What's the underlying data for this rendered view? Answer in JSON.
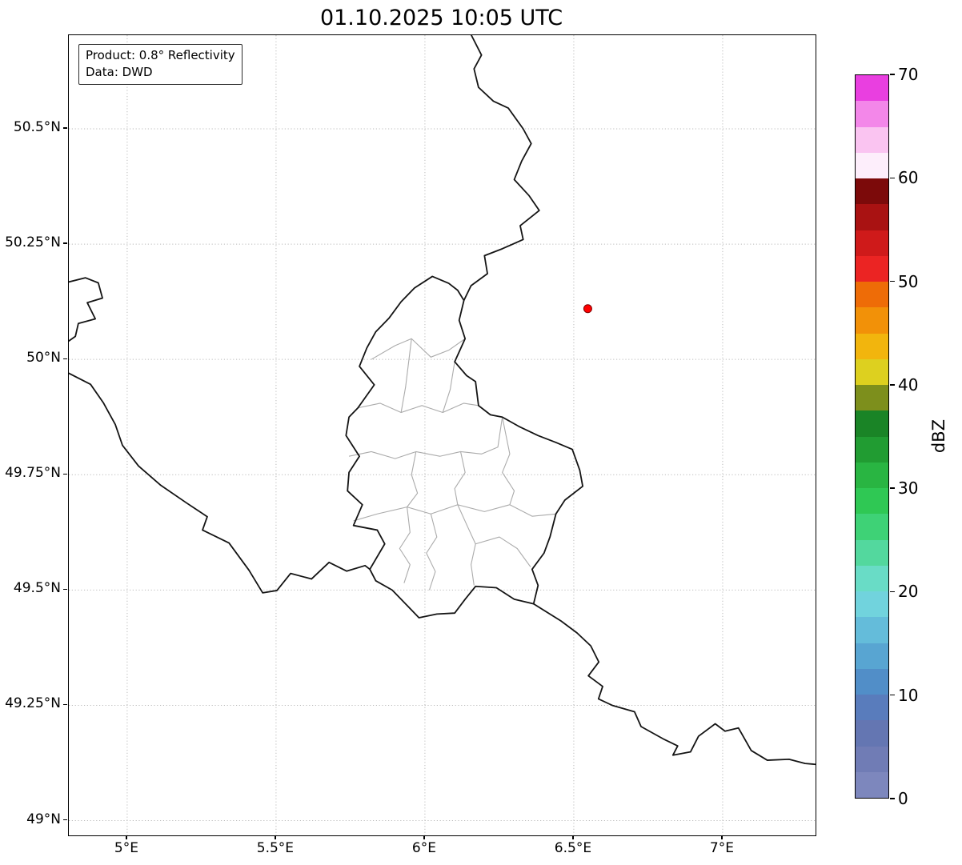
{
  "title": "01.10.2025 10:05 UTC",
  "annotation": {
    "product": "Product: 0.8° Reflectivity",
    "source": "Data: DWD"
  },
  "map": {
    "extent": {
      "lon_min": 4.804,
      "lon_max": 7.312,
      "lat_min": 48.968,
      "lat_max": 50.703
    },
    "grid_color": "#bbbbbb",
    "national_border_color": "#141414",
    "admin_border_color": "#ababab",
    "x_ticks": [
      {
        "v": 5.0,
        "label": "5°E"
      },
      {
        "v": 5.5,
        "label": "5.5°E"
      },
      {
        "v": 6.0,
        "label": "6°E"
      },
      {
        "v": 6.5,
        "label": "6.5°E"
      },
      {
        "v": 7.0,
        "label": "7°E"
      }
    ],
    "y_ticks": [
      {
        "v": 50.5,
        "label": "50.5°N"
      },
      {
        "v": 50.25,
        "label": "50.25°N"
      },
      {
        "v": 50.0,
        "label": "50°N"
      },
      {
        "v": 49.75,
        "label": "49.75°N"
      },
      {
        "v": 49.5,
        "label": "49.5°N"
      },
      {
        "v": 49.25,
        "label": "49.25°N"
      },
      {
        "v": 49.0,
        "label": "49°N"
      }
    ],
    "radar_marker": {
      "lon": 6.547,
      "lat": 50.11,
      "fill": "#ff0000",
      "edge": "#7f0000"
    },
    "borders_national": [
      [
        [
          6.156,
          50.703
        ],
        [
          6.19,
          50.66
        ],
        [
          6.165,
          50.63
        ],
        [
          6.18,
          50.59
        ],
        [
          6.23,
          50.56
        ],
        [
          6.28,
          50.545
        ],
        [
          6.33,
          50.5
        ],
        [
          6.357,
          50.468
        ],
        [
          6.325,
          50.43
        ],
        [
          6.3,
          50.39
        ],
        [
          6.35,
          50.355
        ],
        [
          6.384,
          50.323
        ],
        [
          6.32,
          50.29
        ],
        [
          6.33,
          50.26
        ],
        [
          6.26,
          50.24
        ],
        [
          6.2,
          50.225
        ],
        [
          6.21,
          50.186
        ],
        [
          6.155,
          50.16
        ],
        [
          6.131,
          50.128
        ]
      ],
      [
        [
          6.131,
          50.128
        ],
        [
          6.115,
          50.085
        ],
        [
          6.135,
          50.045
        ],
        [
          6.1,
          49.995
        ],
        [
          6.14,
          49.965
        ],
        [
          6.17,
          49.952
        ],
        [
          6.18,
          49.9
        ],
        [
          6.22,
          49.88
        ],
        [
          6.26,
          49.875
        ],
        [
          6.315,
          49.855
        ],
        [
          6.38,
          49.835
        ],
        [
          6.44,
          49.82
        ],
        [
          6.495,
          49.805
        ],
        [
          6.52,
          49.76
        ],
        [
          6.53,
          49.725
        ],
        [
          6.47,
          49.695
        ],
        [
          6.44,
          49.665
        ],
        [
          6.42,
          49.615
        ],
        [
          6.4,
          49.58
        ],
        [
          6.36,
          49.545
        ],
        [
          6.38,
          49.51
        ],
        [
          6.365,
          49.47
        ],
        [
          6.3,
          49.48
        ],
        [
          6.24,
          49.505
        ],
        [
          6.17,
          49.508
        ],
        [
          6.135,
          49.48
        ],
        [
          6.1,
          49.45
        ],
        [
          6.04,
          49.448
        ],
        [
          5.98,
          49.44
        ],
        [
          5.92,
          49.48
        ],
        [
          5.89,
          49.5
        ],
        [
          5.835,
          49.52
        ],
        [
          5.815,
          49.545
        ],
        [
          5.865,
          49.6
        ],
        [
          5.84,
          49.63
        ],
        [
          5.76,
          49.64
        ],
        [
          5.79,
          49.685
        ],
        [
          5.74,
          49.715
        ],
        [
          5.745,
          49.755
        ],
        [
          5.78,
          49.79
        ],
        [
          5.735,
          49.835
        ],
        [
          5.745,
          49.875
        ],
        [
          5.775,
          49.895
        ],
        [
          5.83,
          49.945
        ],
        [
          5.78,
          49.985
        ],
        [
          5.805,
          50.025
        ],
        [
          5.835,
          50.06
        ],
        [
          5.88,
          50.09
        ],
        [
          5.92,
          50.125
        ],
        [
          5.965,
          50.155
        ],
        [
          6.025,
          50.18
        ],
        [
          6.08,
          50.165
        ],
        [
          6.11,
          50.15
        ],
        [
          6.131,
          50.128
        ]
      ],
      [
        [
          4.804,
          50.168
        ],
        [
          4.86,
          50.177
        ],
        [
          4.903,
          50.166
        ],
        [
          4.917,
          50.133
        ],
        [
          4.866,
          50.123
        ],
        [
          4.893,
          50.088
        ],
        [
          4.836,
          50.078
        ],
        [
          4.826,
          50.05
        ],
        [
          4.804,
          50.04
        ]
      ],
      [
        [
          4.804,
          49.97
        ],
        [
          4.877,
          49.946
        ],
        [
          4.92,
          49.906
        ],
        [
          4.96,
          49.859
        ],
        [
          4.984,
          49.814
        ],
        [
          5.038,
          49.769
        ],
        [
          5.113,
          49.727
        ],
        [
          5.199,
          49.689
        ],
        [
          5.269,
          49.659
        ],
        [
          5.253,
          49.63
        ],
        [
          5.342,
          49.602
        ],
        [
          5.409,
          49.543
        ],
        [
          5.455,
          49.494
        ],
        [
          5.503,
          49.499
        ],
        [
          5.549,
          49.536
        ],
        [
          5.619,
          49.524
        ],
        [
          5.678,
          49.56
        ],
        [
          5.737,
          49.541
        ],
        [
          5.799,
          49.553
        ],
        [
          5.815,
          49.545
        ]
      ],
      [
        [
          6.365,
          49.47
        ],
        [
          6.457,
          49.433
        ],
        [
          6.511,
          49.407
        ],
        [
          6.557,
          49.379
        ],
        [
          6.584,
          49.344
        ],
        [
          6.549,
          49.314
        ],
        [
          6.597,
          49.291
        ],
        [
          6.583,
          49.264
        ],
        [
          6.629,
          49.25
        ],
        [
          6.704,
          49.236
        ],
        [
          6.726,
          49.204
        ],
        [
          6.804,
          49.176
        ],
        [
          6.849,
          49.162
        ],
        [
          6.833,
          49.142
        ],
        [
          6.892,
          49.149
        ],
        [
          6.919,
          49.183
        ],
        [
          6.975,
          49.21
        ],
        [
          7.008,
          49.194
        ],
        [
          7.053,
          49.201
        ],
        [
          7.096,
          49.152
        ],
        [
          7.15,
          49.131
        ],
        [
          7.223,
          49.133
        ],
        [
          7.277,
          49.124
        ],
        [
          7.312,
          49.122
        ]
      ]
    ],
    "borders_admin": [
      [
        [
          5.82,
          50.0
        ],
        [
          5.9,
          50.03
        ],
        [
          5.955,
          50.045
        ],
        [
          6.02,
          50.005
        ],
        [
          6.08,
          50.02
        ],
        [
          6.135,
          50.045
        ]
      ],
      [
        [
          5.775,
          49.895
        ],
        [
          5.85,
          49.905
        ],
        [
          5.92,
          49.885
        ],
        [
          5.99,
          49.9
        ],
        [
          6.06,
          49.885
        ],
        [
          6.13,
          49.905
        ],
        [
          6.18,
          49.9
        ]
      ],
      [
        [
          5.92,
          49.885
        ],
        [
          5.935,
          49.94
        ],
        [
          5.955,
          50.045
        ]
      ],
      [
        [
          6.06,
          49.885
        ],
        [
          6.085,
          49.935
        ],
        [
          6.1,
          49.995
        ]
      ],
      [
        [
          5.745,
          49.79
        ],
        [
          5.82,
          49.8
        ],
        [
          5.9,
          49.785
        ],
        [
          5.97,
          49.8
        ],
        [
          6.05,
          49.79
        ],
        [
          6.12,
          49.8
        ],
        [
          6.19,
          49.795
        ],
        [
          6.245,
          49.81
        ],
        [
          6.26,
          49.875
        ]
      ],
      [
        [
          5.97,
          49.8
        ],
        [
          5.955,
          49.75
        ],
        [
          5.975,
          49.71
        ],
        [
          5.94,
          49.68
        ]
      ],
      [
        [
          6.12,
          49.8
        ],
        [
          6.135,
          49.755
        ],
        [
          6.1,
          49.72
        ],
        [
          6.11,
          49.685
        ]
      ],
      [
        [
          5.76,
          49.65
        ],
        [
          5.84,
          49.665
        ],
        [
          5.94,
          49.68
        ],
        [
          6.02,
          49.665
        ],
        [
          6.11,
          49.685
        ],
        [
          6.2,
          49.67
        ],
        [
          6.285,
          49.685
        ],
        [
          6.36,
          49.66
        ],
        [
          6.44,
          49.665
        ]
      ],
      [
        [
          5.94,
          49.68
        ],
        [
          5.95,
          49.625
        ],
        [
          5.915,
          49.59
        ],
        [
          5.95,
          49.555
        ],
        [
          5.93,
          49.515
        ]
      ],
      [
        [
          6.02,
          49.665
        ],
        [
          6.04,
          49.615
        ],
        [
          6.005,
          49.58
        ],
        [
          6.035,
          49.54
        ],
        [
          6.015,
          49.5
        ]
      ],
      [
        [
          6.11,
          49.685
        ],
        [
          6.145,
          49.635
        ],
        [
          6.17,
          49.6
        ],
        [
          6.155,
          49.555
        ],
        [
          6.165,
          49.51
        ]
      ],
      [
        [
          6.17,
          49.6
        ],
        [
          6.25,
          49.615
        ],
        [
          6.31,
          49.59
        ],
        [
          6.355,
          49.55
        ]
      ],
      [
        [
          6.26,
          49.875
        ],
        [
          6.285,
          49.795
        ],
        [
          6.26,
          49.755
        ],
        [
          6.3,
          49.715
        ],
        [
          6.285,
          49.685
        ]
      ]
    ]
  },
  "colorbar": {
    "label": "dBZ",
    "min": 0,
    "max": 70,
    "ticks": [
      {
        "v": 0,
        "label": "0"
      },
      {
        "v": 10,
        "label": "10"
      },
      {
        "v": 20,
        "label": "20"
      },
      {
        "v": 30,
        "label": "30"
      },
      {
        "v": 40,
        "label": "40"
      },
      {
        "v": 50,
        "label": "50"
      },
      {
        "v": 60,
        "label": "60"
      },
      {
        "v": 70,
        "label": "70"
      }
    ],
    "colors_bottom_to_top": [
      "#7d87bd",
      "#707cb5",
      "#6476b2",
      "#597cbc",
      "#518ec8",
      "#58a5d2",
      "#64bcda",
      "#71d3dd",
      "#69dcc6",
      "#53d89e",
      "#3ed276",
      "#2fc854",
      "#29b542",
      "#219c32",
      "#1a8426",
      "#7d8f1c",
      "#ddd01f",
      "#f2b50d",
      "#f29108",
      "#ee6c07",
      "#eb2423",
      "#cf1a1a",
      "#a91212",
      "#7c0a0a",
      "#fdeefb",
      "#fac4f1",
      "#f387e9",
      "#e93fe0"
    ]
  }
}
